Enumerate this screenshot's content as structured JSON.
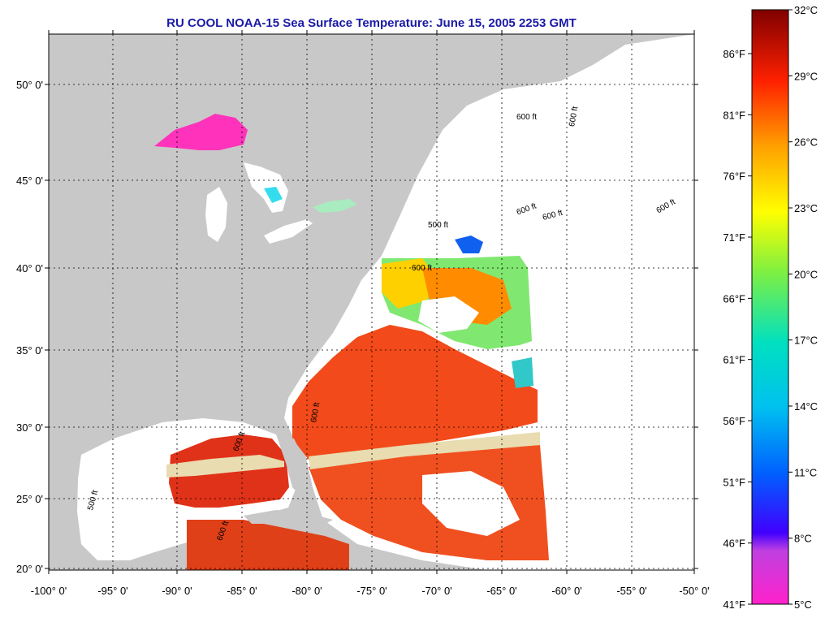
{
  "title": "RU COOL  NOAA-15  Sea Surface Temperature:  June 15, 2005 2253 GMT",
  "lat_ticks": [
    "50° 0'",
    "45° 0'",
    "40° 0'",
    "35° 0'",
    "30° 0'",
    "25° 0'",
    "20° 0'"
  ],
  "lon_ticks": [
    "-100° 0'",
    "-95° 0'",
    "-90° 0'",
    "-85° 0'",
    "-80° 0'",
    "-75° 0'",
    "-70° 0'",
    "-65° 0'",
    "-60° 0'",
    "-55° 0'",
    "-50° 0'"
  ],
  "colorbar": {
    "celsius": [
      "32°C",
      "29°C",
      "26°C",
      "23°C",
      "20°C",
      "17°C",
      "14°C",
      "11°C",
      "8°C",
      "5°C"
    ],
    "fahrenheit": [
      "86°F",
      "81°F",
      "76°F",
      "71°F",
      "66°F",
      "61°F",
      "56°F",
      "51°F",
      "46°F",
      "41°F"
    ]
  },
  "contour_labels": [
    "600 ft",
    "600 ft",
    "600 ft",
    "600 ft",
    "500 ft",
    "600 ft",
    "600 ft",
    "600 ft",
    "500 ft",
    "600 ft",
    "600 ft"
  ],
  "colors": {
    "land": "#c8c8c8",
    "ocean_nodata": "#ffffff",
    "title": "#1a1aa6",
    "warm_sst": "#f04a14"
  }
}
